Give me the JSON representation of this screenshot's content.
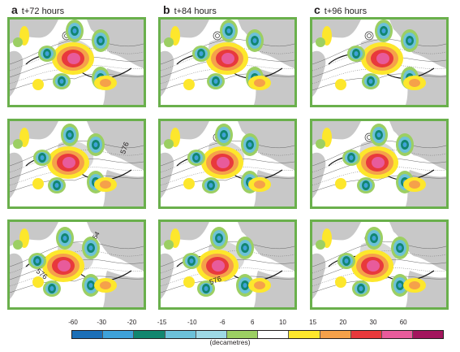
{
  "columns": [
    {
      "letter": "a",
      "title": "t+72 hours"
    },
    {
      "letter": "b",
      "title": "t+84 hours"
    },
    {
      "letter": "c",
      "title": "t+96 hours"
    }
  ],
  "contour_labels": {
    "a2": "576",
    "a3_left": "576",
    "a3_top": "54",
    "b3": "576"
  },
  "legend": {
    "ticks": [
      "-60",
      "-30",
      "-20",
      "-15",
      "-10",
      "-6",
      "6",
      "10",
      "15",
      "20",
      "30",
      "60"
    ],
    "colors": [
      "#1c6fb7",
      "#3fa2d9",
      "#12866f",
      "#6cc1d9",
      "#9ed9e6",
      "#9ccf63",
      "#ffffff",
      "#fde72c",
      "#f5a14a",
      "#e8393c",
      "#e85b9b",
      "#a3155d"
    ],
    "unit": "(decametres)"
  },
  "map_colors": {
    "land": "#c8c8c8",
    "sea": "#ffffff",
    "border": "#6ab04c"
  }
}
